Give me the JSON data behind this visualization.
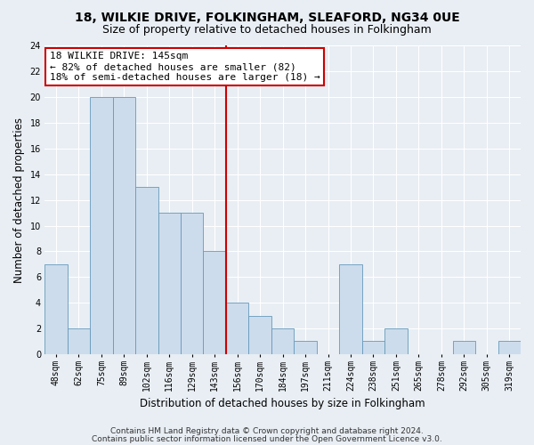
{
  "title_line1": "18, WILKIE DRIVE, FOLKINGHAM, SLEAFORD, NG34 0UE",
  "title_line2": "Size of property relative to detached houses in Folkingham",
  "xlabel": "Distribution of detached houses by size in Folkingham",
  "ylabel": "Number of detached properties",
  "categories": [
    "48sqm",
    "62sqm",
    "75sqm",
    "89sqm",
    "102sqm",
    "116sqm",
    "129sqm",
    "143sqm",
    "156sqm",
    "170sqm",
    "184sqm",
    "197sqm",
    "211sqm",
    "224sqm",
    "238sqm",
    "251sqm",
    "265sqm",
    "278sqm",
    "292sqm",
    "305sqm",
    "319sqm"
  ],
  "values": [
    7,
    2,
    20,
    20,
    13,
    11,
    11,
    8,
    4,
    3,
    2,
    1,
    0,
    7,
    1,
    2,
    0,
    0,
    1,
    0,
    1
  ],
  "bar_color": "#ccdcec",
  "bar_edge_color": "#6699bb",
  "vline_x_index": 7,
  "vline_color": "#cc0000",
  "annotation_line1": "18 WILKIE DRIVE: 145sqm",
  "annotation_line2": "← 82% of detached houses are smaller (82)",
  "annotation_line3": "18% of semi-detached houses are larger (18) →",
  "annotation_box_color": "#ffffff",
  "annotation_box_edge": "#cc0000",
  "ylim": [
    0,
    24
  ],
  "yticks": [
    0,
    2,
    4,
    6,
    8,
    10,
    12,
    14,
    16,
    18,
    20,
    22,
    24
  ],
  "footer_line1": "Contains HM Land Registry data © Crown copyright and database right 2024.",
  "footer_line2": "Contains public sector information licensed under the Open Government Licence v3.0.",
  "background_color": "#e8eef4",
  "plot_bg_color": "#e8eef4",
  "grid_color": "#ffffff",
  "title_fontsize": 10,
  "subtitle_fontsize": 9,
  "axis_label_fontsize": 8.5,
  "tick_fontsize": 7,
  "annotation_fontsize": 8,
  "footer_fontsize": 6.5
}
